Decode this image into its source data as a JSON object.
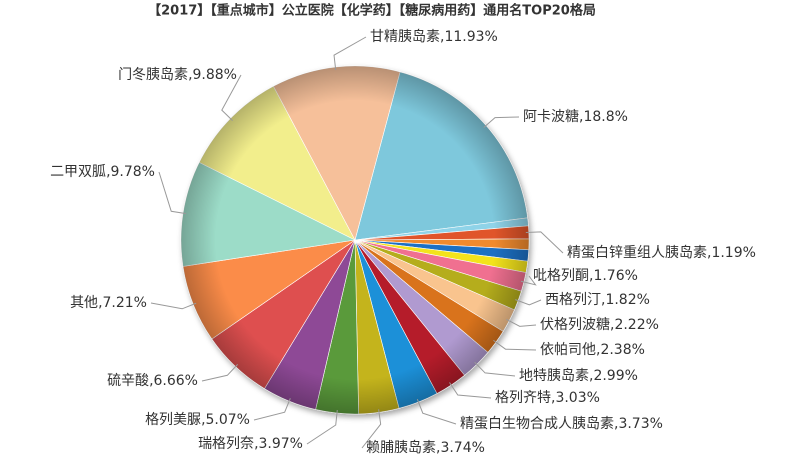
{
  "chart_data": {
    "type": "pie",
    "title": "【2017】【重点城市】公立医院【化学药】【糖尿病用药】通用名TOP20格局",
    "categories": [
      "阿卡波糖",
      null,
      "精蛋白锌重组人胰岛素",
      null,
      null,
      null,
      "吡格列酮",
      "西格列汀",
      "伏格列波糖",
      "依帕司他",
      "地特胰岛素",
      "格列齐特",
      "精蛋白生物合成人胰岛素",
      "赖脯胰岛素",
      "瑞格列奈",
      "格列美脲",
      "硫辛酸",
      "其他",
      "二甲双胍",
      "门冬胰岛素",
      "甘精胰岛素"
    ],
    "values": [
      18.8,
      0.74,
      1.19,
      1.0,
      1.05,
      1.05,
      1.76,
      1.82,
      2.22,
      2.38,
      2.99,
      3.03,
      3.73,
      3.74,
      3.97,
      5.07,
      6.66,
      7.21,
      9.78,
      9.88,
      11.93
    ],
    "value_labels": [
      ",18.8%",
      null,
      ",1.19%",
      null,
      null,
      null,
      ",1.76%",
      ",1.82%",
      ",2.22%",
      ",2.38%",
      ",2.99%",
      ",3.03%",
      ",3.73%",
      ",3.74%",
      ",3.97%",
      ",5.07%",
      ",6.66%",
      ",7.21%",
      ",9.78%",
      ",9.88%",
      ",11.93%"
    ],
    "colors": [
      "#7ec8dc",
      "#8fd3e8",
      "#e0552a",
      "#f08a2e",
      "#1a6fc4",
      "#f3e31c",
      "#f07090",
      "#b5ad1c",
      "#f9c48e",
      "#d9731c",
      "#b09ad0",
      "#b51e2a",
      "#1e90d8",
      "#c4b41c",
      "#5a9a3a",
      "#8e4a96",
      "#de4f4f",
      "#fb8c48",
      "#9cdcc8",
      "#f2ee8c",
      "#f6c09a"
    ]
  }
}
